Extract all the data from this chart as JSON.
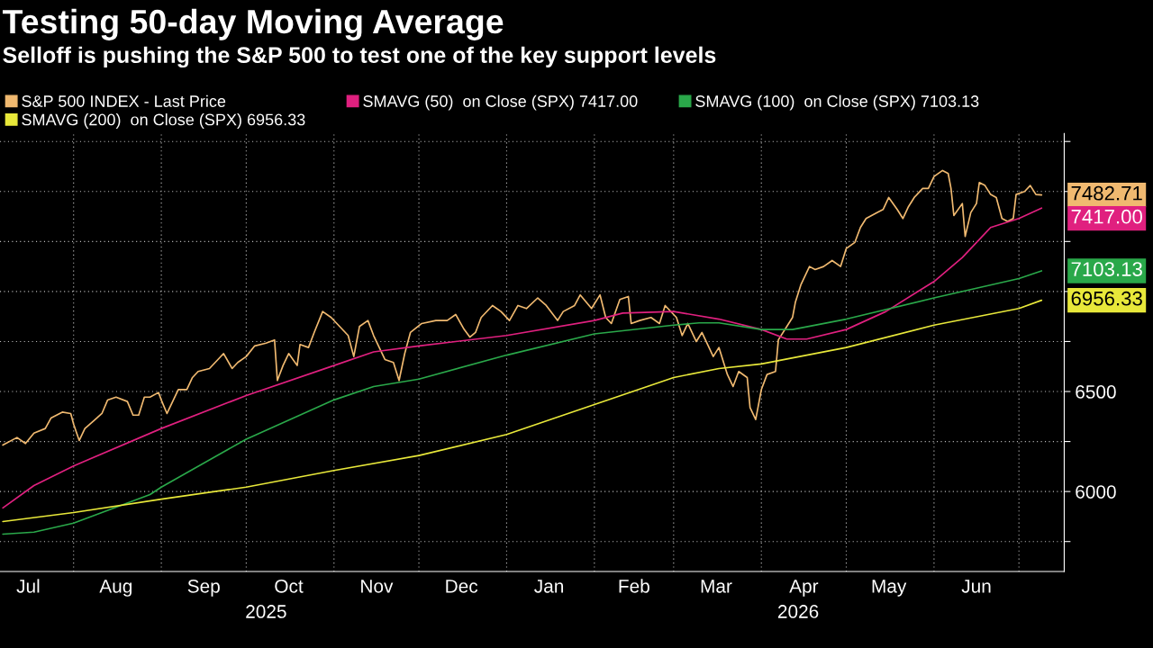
{
  "chart_data": {
    "type": "line",
    "title": "Testing 50-day Moving Average",
    "subtitle": "Selloff is pushing the S&P 500 to test one of the key support levels",
    "series": [
      {
        "name": "S&P 500 INDEX - Last Price",
        "color": "#f0b970",
        "x": [
          "2025-07-07",
          "2025-07-12",
          "2025-07-15",
          "2025-07-18",
          "2025-07-22",
          "2025-07-24",
          "2025-07-28",
          "2025-07-31",
          "2025-08-01",
          "2025-08-03",
          "2025-08-05",
          "2025-08-08",
          "2025-08-11",
          "2025-08-13",
          "2025-08-16",
          "2025-08-20",
          "2025-08-22",
          "2025-08-24",
          "2025-08-26",
          "2025-08-28",
          "2025-08-31",
          "2025-09-01",
          "2025-09-03",
          "2025-09-05",
          "2025-09-07",
          "2025-09-10",
          "2025-09-12",
          "2025-09-14",
          "2025-09-18",
          "2025-09-21",
          "2025-09-23",
          "2025-09-26",
          "2025-09-28",
          "2025-10-01",
          "2025-10-04",
          "2025-10-08",
          "2025-10-11",
          "2025-10-12",
          "2025-10-14",
          "2025-10-16",
          "2025-10-19",
          "2025-10-20",
          "2025-10-23",
          "2025-10-25",
          "2025-10-28",
          "2025-10-31",
          "2025-11-03",
          "2025-11-06",
          "2025-11-08",
          "2025-11-10",
          "2025-11-13",
          "2025-11-15",
          "2025-11-19",
          "2025-11-22",
          "2025-11-24",
          "2025-11-26",
          "2025-11-28",
          "2025-12-02",
          "2025-12-07",
          "2025-12-11",
          "2025-12-14",
          "2025-12-17",
          "2025-12-19",
          "2025-12-21",
          "2025-12-23",
          "2025-12-27",
          "2025-12-30",
          "2026-01-02",
          "2026-01-05",
          "2026-01-08",
          "2026-01-12",
          "2026-01-15",
          "2026-01-19",
          "2026-01-21",
          "2026-01-25",
          "2026-01-27",
          "2026-01-31",
          "2026-02-03",
          "2026-02-05",
          "2026-02-07",
          "2026-02-10",
          "2026-02-13",
          "2026-02-14",
          "2026-02-17",
          "2026-02-21",
          "2026-02-24",
          "2026-02-26",
          "2026-03-02",
          "2026-03-04",
          "2026-03-06",
          "2026-03-09",
          "2026-03-11",
          "2026-03-15",
          "2026-03-17",
          "2026-03-19",
          "2026-03-20",
          "2026-03-22",
          "2026-03-24",
          "2026-03-27",
          "2026-03-28",
          "2026-03-30",
          "2026-04-01",
          "2026-04-03",
          "2026-04-06",
          "2026-04-07",
          "2026-04-10",
          "2026-04-12",
          "2026-04-13",
          "2026-04-15",
          "2026-04-18",
          "2026-04-20",
          "2026-04-23",
          "2026-04-26",
          "2026-04-29",
          "2026-05-01",
          "2026-05-04",
          "2026-05-06",
          "2026-05-08",
          "2026-05-12",
          "2026-05-14",
          "2026-05-16",
          "2026-05-19",
          "2026-05-21",
          "2026-05-23",
          "2026-05-25",
          "2026-05-28",
          "2026-05-30",
          "2026-06-01",
          "2026-06-04",
          "2026-06-06",
          "2026-06-07",
          "2026-06-08",
          "2026-06-11",
          "2026-06-12",
          "2026-06-14",
          "2026-06-16",
          "2026-06-17",
          "2026-06-19",
          "2026-06-21",
          "2026-06-23",
          "2026-06-25",
          "2026-06-27",
          "2026-06-29",
          "2026-06-30",
          "2026-07-03",
          "2026-07-05",
          "2026-07-07",
          "2026-07-09"
        ],
        "values": [
          6232,
          6270,
          6240,
          6292,
          6315,
          6367,
          6397,
          6390,
          6337,
          6255,
          6315,
          6352,
          6390,
          6457,
          6472,
          6450,
          6382,
          6382,
          6472,
          6472,
          6495,
          6457,
          6390,
          6450,
          6510,
          6510,
          6570,
          6600,
          6615,
          6660,
          6690,
          6615,
          6645,
          6675,
          6728,
          6742,
          6758,
          6555,
          6630,
          6690,
          6630,
          6735,
          6720,
          6795,
          6900,
          6870,
          6825,
          6780,
          6675,
          6825,
          6855,
          6780,
          6660,
          6645,
          6555,
          6690,
          6795,
          6840,
          6855,
          6855,
          6885,
          6810,
          6772,
          6795,
          6870,
          6930,
          6900,
          6855,
          6930,
          6915,
          6968,
          6930,
          6855,
          6900,
          6930,
          6983,
          6915,
          6983,
          6870,
          6840,
          6960,
          6975,
          6840,
          6855,
          6870,
          6840,
          6930,
          6870,
          6780,
          6840,
          6750,
          6795,
          6675,
          6720,
          6630,
          6585,
          6525,
          6600,
          6570,
          6420,
          6360,
          6510,
          6585,
          6600,
          6758,
          6825,
          6870,
          6945,
          7035,
          7125,
          7110,
          7125,
          7155,
          7125,
          7215,
          7245,
          7320,
          7365,
          7395,
          7410,
          7470,
          7410,
          7365,
          7425,
          7470,
          7515,
          7515,
          7575,
          7605,
          7590,
          7515,
          7380,
          7440,
          7275,
          7395,
          7440,
          7545,
          7530,
          7485,
          7470,
          7365,
          7350,
          7365,
          7485,
          7500,
          7530,
          7485,
          7482.71
        ]
      },
      {
        "name": "SMAVG (50)  on Close (SPX) 7417.00",
        "color": "#e0207f",
        "x": [
          "2025-07-07",
          "2025-07-18",
          "2025-08-01",
          "2025-09-01",
          "2025-10-01",
          "2025-11-01",
          "2025-11-15",
          "2025-12-01",
          "2026-01-01",
          "2026-02-01",
          "2026-02-11",
          "2026-03-01",
          "2026-03-17",
          "2026-04-01",
          "2026-04-10",
          "2026-04-17",
          "2026-05-01",
          "2026-05-15",
          "2026-06-01",
          "2026-06-11",
          "2026-06-21",
          "2026-07-01",
          "2026-07-09"
        ],
        "values": [
          5918,
          6030,
          6128,
          6315,
          6480,
          6630,
          6698,
          6728,
          6780,
          6855,
          6892,
          6900,
          6862,
          6810,
          6762,
          6762,
          6810,
          6900,
          7050,
          7170,
          7320,
          7365,
          7417.0
        ]
      },
      {
        "name": "SMAVG (100)  on Close (SPX) 7103.13",
        "color": "#2aa84a",
        "x": [
          "2025-07-07",
          "2025-07-18",
          "2025-08-01",
          "2025-08-28",
          "2025-09-01",
          "2025-10-01",
          "2025-11-01",
          "2025-11-15",
          "2025-12-01",
          "2026-01-01",
          "2026-02-01",
          "2026-03-01",
          "2026-03-10",
          "2026-03-17",
          "2026-04-01",
          "2026-04-12",
          "2026-05-01",
          "2026-06-01",
          "2026-07-01",
          "2026-07-09"
        ],
        "values": [
          5787,
          5797,
          5842,
          5985,
          6022,
          6262,
          6458,
          6525,
          6562,
          6682,
          6788,
          6832,
          6843,
          6843,
          6810,
          6810,
          6862,
          6968,
          7065,
          7103.13
        ]
      },
      {
        "name": "SMAVG (200)  on Close (SPX) 6956.33",
        "color": "#e8e83a",
        "x": [
          "2025-07-07",
          "2025-08-01",
          "2025-09-01",
          "2025-10-01",
          "2025-11-01",
          "2025-12-01",
          "2026-01-01",
          "2026-02-01",
          "2026-03-01",
          "2026-03-17",
          "2026-04-01",
          "2026-05-01",
          "2026-06-01",
          "2026-07-01",
          "2026-07-09"
        ],
        "values": [
          5850,
          5895,
          5962,
          6022,
          6105,
          6180,
          6285,
          6435,
          6570,
          6615,
          6638,
          6720,
          6832,
          6915,
          6956.33
        ]
      }
    ],
    "annotations": [
      {
        "text": "7482.71",
        "x": "2026-07-09",
        "y": 7482.71
      },
      {
        "text": "7417.00",
        "x": "2026-07-09",
        "y": 7417.0
      },
      {
        "text": "7103.13",
        "x": "2026-07-09",
        "y": 7103.13
      },
      {
        "text": "6956.33",
        "x": "2026-07-09",
        "y": 6956.33
      },
      "2025",
      "2026"
    ],
    "xlim": [
      "2025-07-06",
      "2026-07-17"
    ],
    "xticks": [
      {
        "value": "2025-07-16",
        "label": "Jul"
      },
      {
        "value": "2025-08-01",
        "label": null
      },
      {
        "value": "2025-08-16",
        "label": "Aug"
      },
      {
        "value": "2025-09-01",
        "label": null
      },
      {
        "value": "2025-09-16",
        "label": "Sep"
      },
      {
        "value": "2025-10-01",
        "label": null
      },
      {
        "value": "2025-10-16",
        "label": "Oct"
      },
      {
        "value": "2025-11-01",
        "label": null
      },
      {
        "value": "2025-11-16",
        "label": "Nov"
      },
      {
        "value": "2025-12-01",
        "label": null
      },
      {
        "value": "2025-12-16",
        "label": "Dec"
      },
      {
        "value": "2026-01-01",
        "label": null
      },
      {
        "value": "2026-01-16",
        "label": "Jan"
      },
      {
        "value": "2026-02-01",
        "label": null
      },
      {
        "value": "2026-02-15",
        "label": "Feb"
      },
      {
        "value": "2026-03-01",
        "label": null
      },
      {
        "value": "2026-03-16",
        "label": "Mar"
      },
      {
        "value": "2026-04-01",
        "label": null
      },
      {
        "value": "2026-04-16",
        "label": "Apr"
      },
      {
        "value": "2026-05-01",
        "label": null
      },
      {
        "value": "2026-05-16",
        "label": "May"
      },
      {
        "value": "2026-06-01",
        "label": null
      },
      {
        "value": "2026-06-16",
        "label": "Jun"
      },
      {
        "value": "2026-07-01",
        "label": null
      }
    ],
    "ylim": [
      5600,
      7790
    ],
    "yticks": [
      {
        "value": 5750,
        "label": null
      },
      6000,
      {
        "value": 6250,
        "label": null
      },
      6500,
      {
        "value": 6750,
        "label": null
      },
      {
        "value": 7000,
        "label": null
      },
      {
        "value": 7250,
        "label": null
      },
      {
        "value": 7500,
        "label": null
      },
      {
        "value": 7750,
        "label": null
      }
    ],
    "grid": true,
    "legend": "top",
    "marker": "none",
    "line_style": "solid"
  }
}
